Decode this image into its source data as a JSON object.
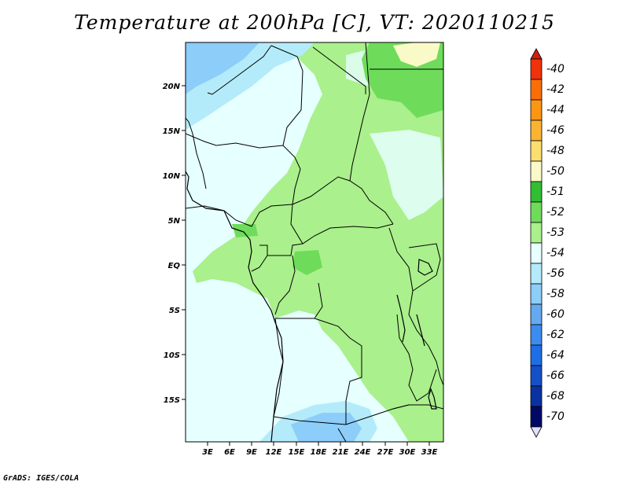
{
  "title": "Temperature at 200hPa [C], VT: 2020110215",
  "credit": "GrADS: IGES/COLA",
  "map": {
    "lat_labels": [
      "20N",
      "15N",
      "10N",
      "5N",
      "EQ",
      "5S",
      "10S",
      "15S"
    ],
    "lon_labels": [
      "3E",
      "6E",
      "9E",
      "12E",
      "15E",
      "18E",
      "21E",
      "24E",
      "27E",
      "30E",
      "33E"
    ]
  },
  "colorbar": {
    "levels": [
      "-40",
      "-42",
      "-44",
      "-46",
      "-48",
      "-50",
      "-51",
      "-52",
      "-53",
      "-54",
      "-56",
      "-58",
      "-60",
      "-62",
      "-64",
      "-66",
      "-68",
      "-70"
    ],
    "colors": [
      "#d21e0a",
      "#f0320a",
      "#fa6e0a",
      "#fa9614",
      "#fab432",
      "#fade6e",
      "#fafac8",
      "#32be32",
      "#6edc5a",
      "#aaf08c",
      "#e6ffff",
      "#b4ebfa",
      "#8ccdfa",
      "#64aaf0",
      "#3c8cf0",
      "#1e6ee6",
      "#1450c8",
      "#0a32a0",
      "#000a64",
      "#e1e1ff"
    ]
  }
}
